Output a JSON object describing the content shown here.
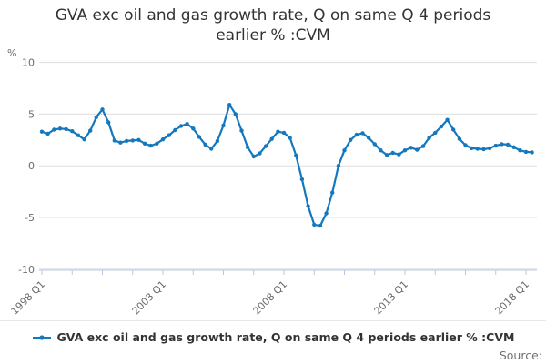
{
  "title": {
    "line1": "GVA exc oil and gas growth rate, Q on same Q 4 periods",
    "line2": "earlier % :CVM",
    "full": "GVA exc oil and gas growth rate, Q on same Q 4 periods earlier % :CVM"
  },
  "y_axis": {
    "unit_label": "%",
    "tick_labels": [
      "10",
      "5",
      "0",
      "-5",
      "-10"
    ],
    "ticks": [
      10,
      5,
      0,
      -5,
      -10
    ]
  },
  "x_axis": {
    "tick_labels": [
      "1998 Q1",
      "2003 Q1",
      "2008 Q1",
      "2013 Q1",
      "2018 Q1"
    ],
    "minor_ticks_between_labels": 4
  },
  "legend": {
    "marker": "line-with-dot",
    "label": "GVA exc oil and gas growth rate, Q on same Q 4 periods earlier % :CVM"
  },
  "footer": {
    "source_label": "Source:"
  },
  "colors": {
    "line": "#1478be",
    "grid": "#dedede",
    "axis": "#b7c8e0",
    "text_muted": "#6b6b6b",
    "text_dark": "#333333"
  },
  "chart_data": {
    "type": "line",
    "title": "GVA exc oil and gas growth rate, Q on same Q 4 periods earlier % :CVM",
    "series_name": "GVA exc oil and gas growth rate, Q on same Q 4 periods earlier % :CVM",
    "frequency": "quarterly",
    "x_start": "1998 Q1",
    "x_end": "2018 Q2",
    "ylabel": "%",
    "ylim": [
      -10,
      10
    ],
    "grid": "horizontal",
    "legend_position": "bottom",
    "markers": true,
    "xtick_labels": [
      "1998 Q1",
      "2003 Q1",
      "2008 Q1",
      "2013 Q1",
      "2018 Q1"
    ],
    "values": [
      3.3,
      3.1,
      3.5,
      3.6,
      3.55,
      3.35,
      2.95,
      2.55,
      3.4,
      4.7,
      5.45,
      4.2,
      2.45,
      2.25,
      2.4,
      2.45,
      2.5,
      2.15,
      1.95,
      2.15,
      2.55,
      2.95,
      3.45,
      3.85,
      4.05,
      3.6,
      2.8,
      2.05,
      1.65,
      2.4,
      3.9,
      5.9,
      5.0,
      3.4,
      1.8,
      0.9,
      1.2,
      1.9,
      2.6,
      3.3,
      3.2,
      2.7,
      1.0,
      -1.3,
      -3.9,
      -5.7,
      -5.8,
      -4.6,
      -2.6,
      0.0,
      1.5,
      2.5,
      3.0,
      3.15,
      2.7,
      2.1,
      1.5,
      1.05,
      1.25,
      1.1,
      1.5,
      1.75,
      1.55,
      1.9,
      2.7,
      3.2,
      3.8,
      4.45,
      3.5,
      2.6,
      2.0,
      1.7,
      1.65,
      1.6,
      1.7,
      1.95,
      2.1,
      2.05,
      1.8,
      1.5,
      1.35,
      1.3
    ]
  }
}
